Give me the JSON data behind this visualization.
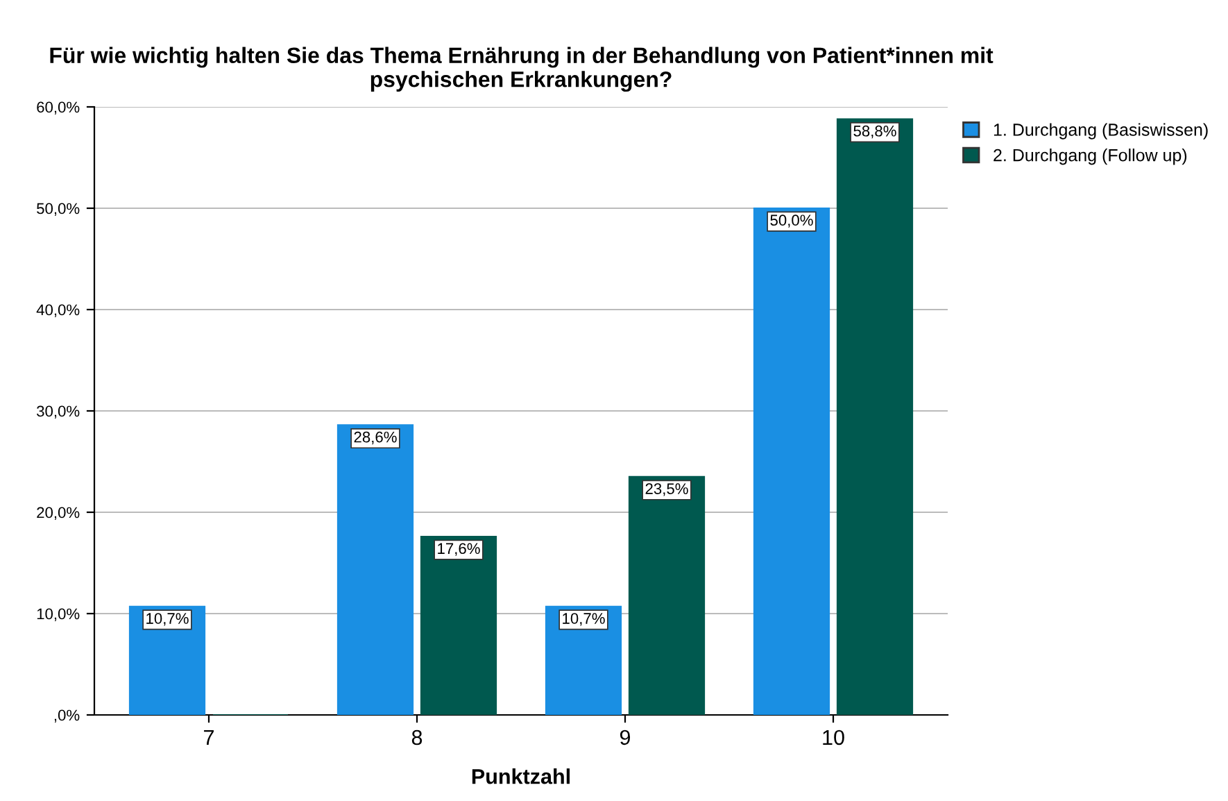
{
  "chart_data": {
    "type": "bar",
    "title": "Für wie wichtig halten Sie das Thema Ernährung in der Behandlung von Patient*innen mit psychischen Erkrankungen?",
    "xlabel": "Punktzahl",
    "categories": [
      "7",
      "8",
      "9",
      "10"
    ],
    "series": [
      {
        "name": "1. Durchgang (Basiswissen)",
        "color": "#1a8fe3",
        "values": [
          10.7,
          28.6,
          10.7,
          50.0
        ],
        "value_labels": [
          "10,7%",
          "28,6%",
          "10,7%",
          "50,0%"
        ]
      },
      {
        "name": "2. Durchgang (Follow up)",
        "color": "#00594f",
        "values": [
          0,
          17.6,
          23.5,
          58.8
        ],
        "value_labels": [
          null,
          "17,6%",
          "23,5%",
          "58,8%"
        ]
      }
    ],
    "ylim": [
      0,
      60
    ],
    "yticks": [
      {
        "value": 0,
        "label": ",0%"
      },
      {
        "value": 10,
        "label": "10,0%"
      },
      {
        "value": 20,
        "label": "20,0%"
      },
      {
        "value": 30,
        "label": "30,0%"
      },
      {
        "value": 40,
        "label": "40,0%"
      },
      {
        "value": 50,
        "label": "50,0%"
      },
      {
        "value": 60,
        "label": "60,0%"
      }
    ],
    "grid": "y",
    "legend": "top right"
  }
}
